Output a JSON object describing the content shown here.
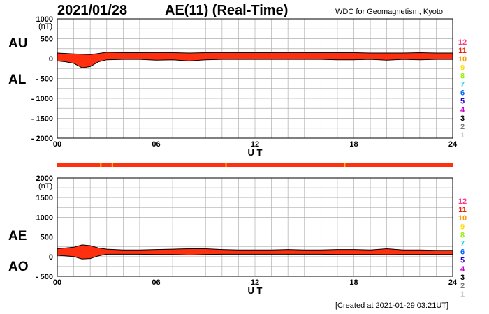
{
  "header": {
    "date": "2021/01/28",
    "title": "AE(11) (Real-Time)",
    "source": "WDC for Geomagnetism, Kyoto"
  },
  "footer": {
    "created": "[Created at 2021-01-29 03:21UT]"
  },
  "colors": {
    "main_fill": "#ff3010",
    "outline": "#000000",
    "flag": "#ffc000",
    "grid": "#b0b0b0"
  },
  "legend": {
    "entries": [
      {
        "label": "12",
        "color": "#ff3388"
      },
      {
        "label": "11",
        "color": "#ee2200"
      },
      {
        "label": "10",
        "color": "#ff9900"
      },
      {
        "label": "9",
        "color": "#ffdd00"
      },
      {
        "label": "8",
        "color": "#99ee00"
      },
      {
        "label": "7",
        "color": "#22ccee"
      },
      {
        "label": "6",
        "color": "#0066ff"
      },
      {
        "label": "5",
        "color": "#2200cc"
      },
      {
        "label": "4",
        "color": "#cc00cc"
      },
      {
        "label": "3",
        "color": "#000000"
      },
      {
        "label": "2",
        "color": "#777777"
      },
      {
        "label": "1",
        "color": "#cccccc"
      }
    ]
  },
  "chart_data": [
    {
      "type": "area",
      "panel": "AU/AL",
      "labels": [
        "AU",
        "AL"
      ],
      "unit": "(nT)",
      "xlabel": "U T",
      "xticks": [
        "00",
        "06",
        "12",
        "18",
        "24"
      ],
      "xlim": [
        0,
        24
      ],
      "ylim": [
        -2000,
        1000
      ],
      "yticks": [
        {
          "v": 1000,
          "label": "1000"
        },
        {
          "v": 500,
          "label": "500"
        },
        {
          "v": 0,
          "label": "0"
        },
        {
          "v": -500,
          "label": "- 500"
        },
        {
          "v": -1000,
          "label": "- 1000"
        },
        {
          "v": -1500,
          "label": "- 1500"
        },
        {
          "v": -2000,
          "label": "- 2000"
        }
      ],
      "series": [
        {
          "key": "AU",
          "x": [
            0,
            0.5,
            1,
            1.5,
            2,
            2.5,
            3,
            4,
            5,
            6,
            7,
            8,
            9,
            10,
            11,
            12,
            13,
            14,
            15,
            16,
            17,
            18,
            19,
            20,
            21,
            22,
            23,
            24
          ],
          "values": [
            140,
            130,
            120,
            110,
            100,
            130,
            160,
            150,
            150,
            155,
            150,
            140,
            150,
            155,
            150,
            150,
            150,
            155,
            150,
            150,
            150,
            150,
            140,
            140,
            140,
            150,
            140,
            140
          ]
        },
        {
          "key": "AL",
          "x": [
            0,
            0.5,
            1,
            1.5,
            2,
            2.5,
            3,
            4,
            5,
            6,
            7,
            8,
            9,
            10,
            11,
            12,
            13,
            14,
            15,
            16,
            17,
            18,
            19,
            20,
            21,
            22,
            23,
            24
          ],
          "values": [
            -60,
            -80,
            -120,
            -230,
            -200,
            -80,
            -30,
            -20,
            -20,
            -40,
            -30,
            -60,
            -30,
            -20,
            -20,
            -20,
            -20,
            -20,
            -20,
            -20,
            -30,
            -30,
            -20,
            -40,
            -20,
            -30,
            -20,
            -20
          ]
        }
      ]
    },
    {
      "type": "area",
      "panel": "AE/AO",
      "labels": [
        "AE",
        "AO"
      ],
      "unit": "(nT)",
      "xlabel": "U T",
      "xticks": [
        "00",
        "06",
        "12",
        "18",
        "24"
      ],
      "xlim": [
        0,
        24
      ],
      "ylim": [
        -500,
        2000
      ],
      "yticks": [
        {
          "v": 2000,
          "label": "2000"
        },
        {
          "v": 1500,
          "label": "1500"
        },
        {
          "v": 1000,
          "label": "1000"
        },
        {
          "v": 500,
          "label": "500"
        },
        {
          "v": 0,
          "label": "0"
        },
        {
          "v": -500,
          "label": "- 500"
        }
      ],
      "series": [
        {
          "key": "AE",
          "x": [
            0,
            0.5,
            1,
            1.5,
            2,
            2.5,
            3,
            4,
            5,
            6,
            7,
            8,
            9,
            10,
            11,
            12,
            13,
            14,
            15,
            16,
            17,
            18,
            19,
            20,
            21,
            22,
            23,
            24
          ],
          "values": [
            200,
            220,
            240,
            300,
            280,
            220,
            190,
            170,
            170,
            180,
            190,
            200,
            200,
            180,
            170,
            170,
            170,
            180,
            170,
            170,
            180,
            180,
            170,
            200,
            170,
            170,
            160,
            160
          ]
        },
        {
          "key": "AO",
          "x": [
            0,
            0.5,
            1,
            1.5,
            2,
            2.5,
            3,
            4,
            5,
            6,
            7,
            8,
            9,
            10,
            11,
            12,
            13,
            14,
            15,
            16,
            17,
            18,
            19,
            20,
            21,
            22,
            23,
            24
          ],
          "values": [
            30,
            20,
            0,
            -60,
            -50,
            20,
            60,
            60,
            60,
            55,
            55,
            40,
            55,
            60,
            60,
            60,
            60,
            60,
            60,
            60,
            55,
            55,
            55,
            50,
            55,
            55,
            55,
            55
          ]
        }
      ]
    }
  ]
}
